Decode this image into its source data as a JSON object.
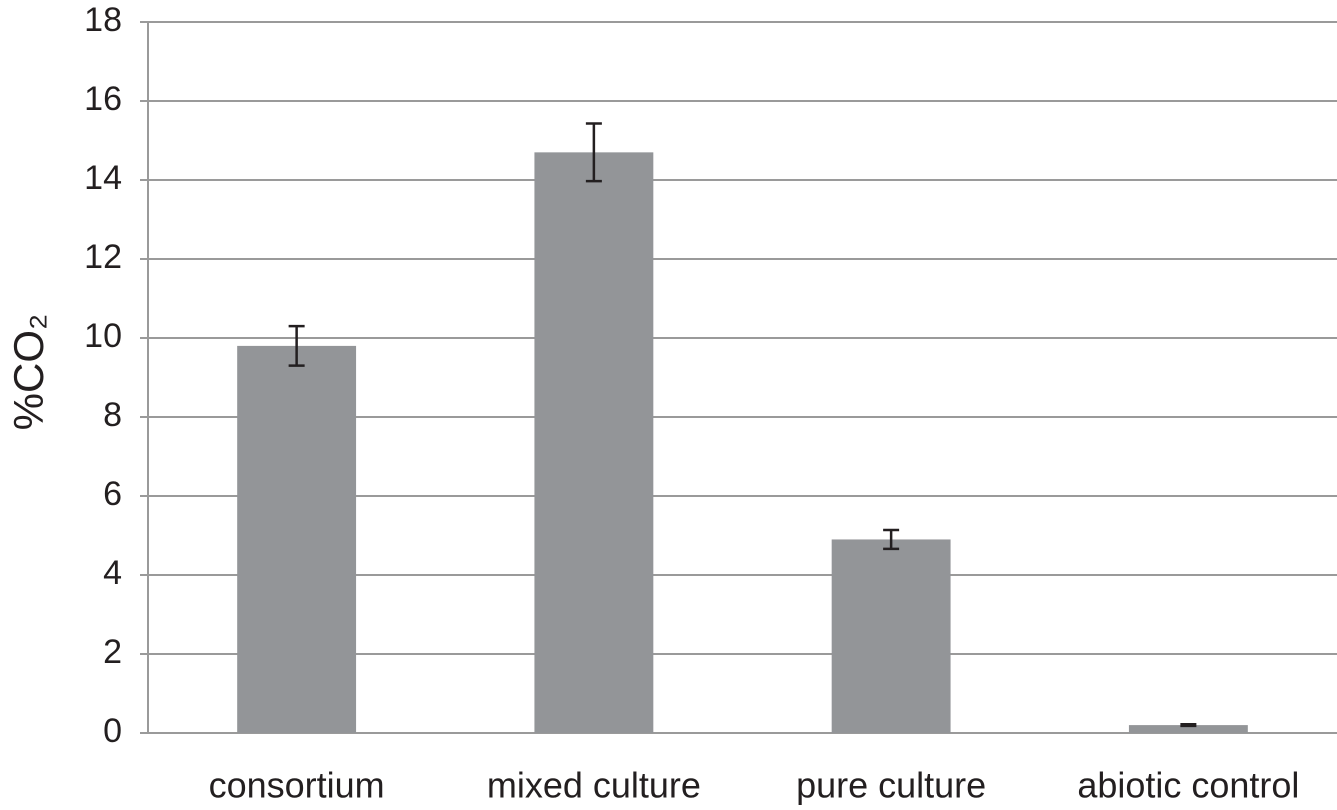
{
  "chart_data": {
    "type": "bar",
    "ylabel": "%CO₂",
    "categories": [
      "consortium",
      "mixed culture",
      "pure culture",
      "abiotic control"
    ],
    "values": [
      9.8,
      14.7,
      4.9,
      0.2
    ],
    "errors": [
      0.5,
      0.73,
      0.24,
      0.02
    ],
    "color": "#939598",
    "error_color": "#231f20",
    "ylim": [
      0,
      18
    ],
    "yticks": [
      0,
      2,
      4,
      6,
      8,
      10,
      12,
      14,
      16,
      18
    ],
    "grid": true
  }
}
